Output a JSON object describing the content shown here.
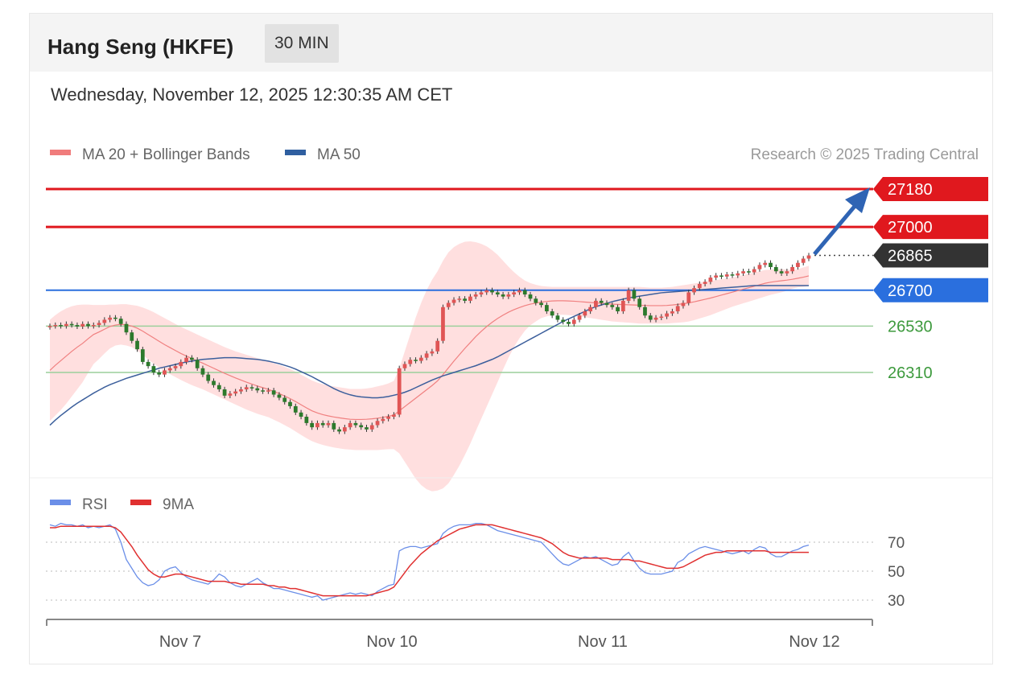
{
  "header": {
    "title": "Hang Seng (HKFE)",
    "timeframe": "30 MIN"
  },
  "datetime": "Wednesday, November 12, 2025 12:30:35 AM CET",
  "copyright": "Research © 2025 Trading Central",
  "colors": {
    "resistance": "#e0181e",
    "pivot": "#2a6fde",
    "support": "#3d9a3d",
    "last": "#333333",
    "up": "#e05555",
    "down": "#2c7a2c",
    "band": "#ffd9d9",
    "ma50": "#4a6da7",
    "rsi": "#6b8fe8",
    "rsi_ma": "#e03030"
  },
  "chart_data": [
    {
      "type": "candlestick",
      "legend": [
        {
          "name": "MA 20 + Bollinger Bands",
          "color": "#f07c7c"
        },
        {
          "name": "MA 50",
          "color": "#2f5fa0"
        }
      ],
      "ylim": [
        25900,
        27240
      ],
      "x_ticks": [
        "Nov 7",
        "Nov 10",
        "Nov 11",
        "Nov 12"
      ],
      "levels": [
        {
          "value": 27180,
          "label": "27180",
          "kind": "resistance"
        },
        {
          "value": 27000,
          "label": "27000",
          "kind": "resistance"
        },
        {
          "value": 26865,
          "label": "26865",
          "kind": "last"
        },
        {
          "value": 26700,
          "label": "26700",
          "kind": "pivot"
        },
        {
          "value": 26530,
          "label": "26530",
          "kind": "support"
        },
        {
          "value": 26310,
          "label": "26310",
          "kind": "support"
        }
      ],
      "close": [
        26530,
        26535,
        26530,
        26540,
        26535,
        26528,
        26540,
        26530,
        26535,
        26545,
        26560,
        26570,
        26565,
        26540,
        26500,
        26460,
        26420,
        26360,
        26340,
        26310,
        26300,
        26320,
        26330,
        26340,
        26360,
        26380,
        26370,
        26330,
        26300,
        26270,
        26250,
        26230,
        26200,
        26210,
        26220,
        26230,
        26240,
        26235,
        26225,
        26220,
        26225,
        26205,
        26190,
        26170,
        26150,
        26120,
        26100,
        26070,
        26050,
        26070,
        26060,
        26070,
        26040,
        26030,
        26050,
        26070,
        26060,
        26050,
        26040,
        26060,
        26080,
        26090,
        26100,
        26110,
        26330,
        26350,
        26370,
        26365,
        26380,
        26400,
        26410,
        26460,
        26620,
        26640,
        26655,
        26660,
        26650,
        26670,
        26680,
        26690,
        26700,
        26690,
        26680,
        26670,
        26680,
        26690,
        26700,
        26680,
        26660,
        26640,
        26630,
        26600,
        26580,
        26560,
        26550,
        26540,
        26560,
        26580,
        26600,
        26620,
        26650,
        26640,
        26630,
        26620,
        26600,
        26650,
        26700,
        26660,
        26620,
        26580,
        26560,
        26570,
        26575,
        26590,
        26600,
        26625,
        26640,
        26690,
        26710,
        26730,
        26740,
        26760,
        26770,
        26765,
        26775,
        26770,
        26780,
        26790,
        26785,
        26800,
        26820,
        26830,
        26810,
        26790,
        26780,
        26790,
        26810,
        26830,
        26850,
        26865
      ],
      "sma20": [
        26320,
        26344,
        26366,
        26388,
        26410,
        26430,
        26448,
        26470,
        26490,
        26502,
        26515,
        26528,
        26535,
        26538,
        26536,
        26530,
        26520,
        26506,
        26490,
        26474,
        26458,
        26442,
        26428,
        26414,
        26400,
        26388,
        26376,
        26365,
        26354,
        26342,
        26330,
        26318,
        26306,
        26295,
        26284,
        26274,
        26264,
        26255,
        26246,
        26238,
        26230,
        26220,
        26210,
        26198,
        26186,
        26172,
        26157,
        26142,
        26128,
        26118,
        26110,
        26104,
        26099,
        26095,
        26091,
        26088,
        26087,
        26087,
        26088,
        26090,
        26093,
        26097,
        26102,
        26108,
        26128,
        26148,
        26168,
        26188,
        26208,
        26228,
        26248,
        26270,
        26300,
        26332,
        26364,
        26394,
        26424,
        26452,
        26480,
        26505,
        26528,
        26548,
        26566,
        26582,
        26596,
        26608,
        26618,
        26627,
        26634,
        26639,
        26644,
        26647,
        26649,
        26650,
        26650,
        26649,
        26648,
        26646,
        26644,
        26642,
        26640,
        26638,
        26636,
        26634,
        26633,
        26632,
        26631,
        26630,
        26629,
        26628,
        26627,
        26627,
        26627,
        26628,
        26630,
        26633,
        26636,
        26640,
        26645,
        26651,
        26657,
        26663,
        26670,
        26677,
        26684,
        26691,
        26698,
        26705,
        26712,
        26719,
        26726,
        26733,
        26738,
        26742,
        26745,
        26748,
        26752,
        26757,
        26762,
        26768
      ],
      "upper": [
        26560,
        26582,
        26600,
        26614,
        26624,
        26630,
        26632,
        26632,
        26630,
        26630,
        26630,
        26632,
        26632,
        26634,
        26634,
        26630,
        26626,
        26618,
        26608,
        26596,
        26582,
        26568,
        26554,
        26540,
        26526,
        26514,
        26502,
        26490,
        26478,
        26466,
        26454,
        26442,
        26430,
        26420,
        26410,
        26402,
        26394,
        26386,
        26378,
        26370,
        26362,
        26354,
        26346,
        26336,
        26326,
        26314,
        26300,
        26286,
        26272,
        26262,
        26254,
        26248,
        26244,
        26240,
        26236,
        26232,
        26232,
        26232,
        26234,
        26238,
        26244,
        26250,
        26258,
        26270,
        26330,
        26410,
        26490,
        26570,
        26640,
        26700,
        26750,
        26790,
        26840,
        26880,
        26905,
        26920,
        26930,
        26932,
        26928,
        26920,
        26908,
        26890,
        26868,
        26840,
        26812,
        26786,
        26764,
        26746,
        26734,
        26726,
        26720,
        26718,
        26716,
        26716,
        26716,
        26716,
        26716,
        26716,
        26716,
        26716,
        26716,
        26716,
        26716,
        26716,
        26716,
        26716,
        26716,
        26716,
        26716,
        26714,
        26712,
        26712,
        26712,
        26714,
        26716,
        26720,
        26724,
        26728,
        26732,
        26736,
        26740,
        26744,
        26748,
        26752,
        26756,
        26760,
        26766,
        26772,
        26778,
        26784,
        26790,
        26796,
        26798,
        26800,
        26800,
        26798,
        26796,
        26800,
        26808,
        26816
      ],
      "lower": [
        26080,
        26106,
        26132,
        26162,
        26196,
        26230,
        26264,
        26308,
        26350,
        26374,
        26400,
        26424,
        26438,
        26442,
        26438,
        26430,
        26414,
        26394,
        26372,
        26352,
        26334,
        26316,
        26302,
        26288,
        26274,
        26262,
        26250,
        26240,
        26230,
        26218,
        26206,
        26194,
        26182,
        26170,
        26158,
        26146,
        26134,
        26124,
        26114,
        26106,
        26098,
        26086,
        26074,
        26060,
        26046,
        26030,
        26014,
        25998,
        25984,
        25974,
        25966,
        25960,
        25954,
        25950,
        25946,
        25944,
        25942,
        25942,
        25942,
        25942,
        25942,
        25944,
        25946,
        25946,
        25926,
        25886,
        25846,
        25806,
        25776,
        25756,
        25746,
        25750,
        25760,
        25784,
        25824,
        25868,
        25918,
        25972,
        26032,
        26090,
        26148,
        26206,
        26264,
        26324,
        26380,
        26430,
        26472,
        26508,
        26534,
        26552,
        26568,
        26576,
        26582,
        26584,
        26584,
        26582,
        26580,
        26576,
        26572,
        26568,
        26564,
        26560,
        26556,
        26552,
        26550,
        26548,
        26546,
        26544,
        26542,
        26542,
        26542,
        26542,
        26542,
        26542,
        26544,
        26546,
        26548,
        26552,
        26558,
        26566,
        26574,
        26582,
        26592,
        26602,
        26612,
        26622,
        26630,
        26638,
        26646,
        26654,
        26662,
        26670,
        26678,
        26684,
        26690,
        26698,
        26708,
        26714,
        26716,
        26720
      ],
      "sma50": [
        26060,
        26084,
        26106,
        26126,
        26146,
        26164,
        26180,
        26196,
        26212,
        26226,
        26240,
        26252,
        26262,
        26272,
        26282,
        26290,
        26298,
        26306,
        26314,
        26322,
        26330,
        26336,
        26342,
        26348,
        26354,
        26360,
        26364,
        26368,
        26372,
        26374,
        26376,
        26378,
        26380,
        26380,
        26380,
        26378,
        26376,
        26374,
        26372,
        26368,
        26364,
        26358,
        26352,
        26344,
        26336,
        26326,
        26314,
        26302,
        26290,
        26276,
        26262,
        26248,
        26234,
        26222,
        26212,
        26204,
        26198,
        26194,
        26192,
        26190,
        26190,
        26192,
        26196,
        26202,
        26208,
        26216,
        26226,
        26238,
        26250,
        26262,
        26274,
        26284,
        26294,
        26302,
        26310,
        26318,
        26326,
        26334,
        26342,
        26352,
        26362,
        26372,
        26384,
        26398,
        26412,
        26426,
        26440,
        26454,
        26468,
        26482,
        26496,
        26510,
        26524,
        26538,
        26552,
        26564,
        26576,
        26588,
        26600,
        26612,
        26622,
        26630,
        26638,
        26646,
        26652,
        26658,
        26664,
        26668,
        26672,
        26676,
        26680,
        26684,
        26688,
        26690,
        26692,
        26694,
        26696,
        26698,
        26700,
        26702,
        26704,
        26706,
        26708,
        26710,
        26712,
        26714,
        26716,
        26718,
        26720,
        26722,
        26722,
        26722,
        26722,
        26722,
        26722,
        26722,
        26722,
        26722,
        26722,
        26722
      ]
    },
    {
      "type": "line",
      "legend": [
        {
          "name": "RSI",
          "color": "#6b8fe8"
        },
        {
          "name": "9MA",
          "color": "#e03030"
        }
      ],
      "ylim": [
        20,
        90
      ],
      "y_ticks": [
        30,
        50,
        70
      ],
      "rsi": [
        82,
        81,
        83,
        82,
        82,
        81,
        82,
        80,
        81,
        80,
        81,
        82,
        79,
        70,
        58,
        52,
        46,
        42,
        40,
        41,
        44,
        50,
        52,
        53,
        49,
        46,
        44,
        43,
        42,
        41,
        44,
        48,
        46,
        42,
        40,
        39,
        41,
        43,
        45,
        42,
        40,
        38,
        38,
        37,
        36,
        35,
        34,
        33,
        32,
        33,
        30,
        31,
        32,
        33,
        34,
        35,
        34,
        35,
        34,
        33,
        36,
        38,
        40,
        41,
        64,
        66,
        67,
        67,
        66,
        67,
        68,
        69,
        76,
        79,
        81,
        82,
        82,
        82,
        83,
        83,
        82,
        80,
        78,
        77,
        76,
        75,
        74,
        73,
        72,
        71,
        70,
        66,
        62,
        58,
        55,
        54,
        56,
        58,
        60,
        59,
        60,
        58,
        56,
        54,
        55,
        60,
        63,
        57,
        52,
        49,
        48,
        48,
        48,
        49,
        50,
        56,
        58,
        62,
        64,
        66,
        67,
        66,
        65,
        64,
        63,
        62,
        63,
        64,
        62,
        65,
        67,
        66,
        62,
        60,
        60,
        62,
        64,
        65,
        67,
        68
      ],
      "rsi_ma": [
        80,
        80,
        81,
        81,
        81,
        81,
        81,
        81,
        81,
        81,
        81,
        81,
        80,
        77,
        72,
        67,
        61,
        56,
        51,
        48,
        46,
        46,
        47,
        48,
        48,
        47,
        46,
        45,
        44,
        43,
        43,
        43,
        43,
        42,
        42,
        41,
        41,
        41,
        41,
        41,
        40,
        40,
        39,
        39,
        38,
        38,
        37,
        36,
        35,
        34,
        33,
        33,
        33,
        33,
        33,
        33,
        33,
        33,
        33,
        34,
        35,
        36,
        37,
        39,
        44,
        49,
        54,
        58,
        62,
        65,
        68,
        71,
        73,
        75,
        77,
        79,
        80,
        81,
        82,
        82,
        82,
        82,
        81,
        80,
        79,
        78,
        77,
        76,
        75,
        74,
        73,
        71,
        69,
        66,
        63,
        61,
        60,
        59,
        59,
        59,
        59,
        59,
        59,
        58,
        58,
        58,
        58,
        57,
        57,
        56,
        55,
        54,
        53,
        52,
        52,
        52,
        53,
        55,
        57,
        59,
        61,
        62,
        63,
        63,
        64,
        64,
        64,
        64,
        64,
        64,
        64,
        64,
        63,
        63,
        63,
        63,
        63,
        63,
        63,
        63
      ]
    }
  ]
}
